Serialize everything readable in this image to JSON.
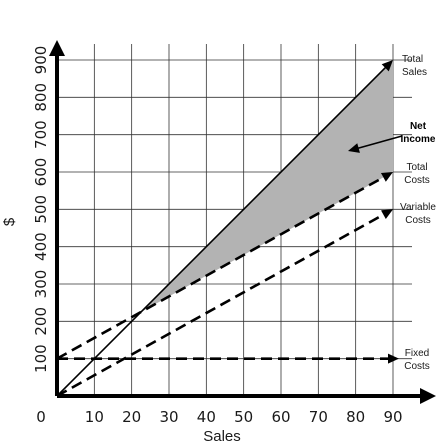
{
  "chart_data": {
    "type": "line",
    "xlabel": "Sales",
    "ylabel": "$",
    "xlim": [
      0,
      90
    ],
    "ylim": [
      0,
      900
    ],
    "x_ticks": [
      "0",
      "10",
      "20",
      "30",
      "40",
      "50",
      "60",
      "70",
      "80",
      "90"
    ],
    "y_ticks": [
      "100",
      "200",
      "300",
      "400",
      "500",
      "600",
      "700",
      "800",
      "900"
    ],
    "grid": true,
    "series": [
      {
        "name": "Total Sales",
        "style": "solid",
        "x": [
          0,
          90
        ],
        "y": [
          0,
          900
        ],
        "label": [
          "Total",
          "Sales"
        ]
      },
      {
        "name": "Total Costs",
        "style": "dashed",
        "x": [
          0,
          90
        ],
        "y": [
          100,
          600
        ],
        "label": [
          "Total",
          "Costs"
        ]
      },
      {
        "name": "Variable Costs",
        "style": "dashed",
        "x": [
          0,
          90
        ],
        "y": [
          0,
          500
        ],
        "label": [
          "Variable",
          "Costs"
        ]
      },
      {
        "name": "Fixed Costs",
        "style": "dashed",
        "x": [
          0,
          90
        ],
        "y": [
          100,
          100
        ],
        "label": [
          "Fixed",
          "Costs"
        ]
      }
    ],
    "shaded_region": {
      "name": "Net Income",
      "between": [
        "Total Sales",
        "Total Costs"
      ],
      "from_x": 22.5,
      "to_x": 90,
      "label": [
        "Net",
        "Income"
      ],
      "color": "#b3b3b3"
    },
    "colors": {
      "line": "#000000",
      "grid": "#333333",
      "fill": "#b3b3b3"
    }
  }
}
